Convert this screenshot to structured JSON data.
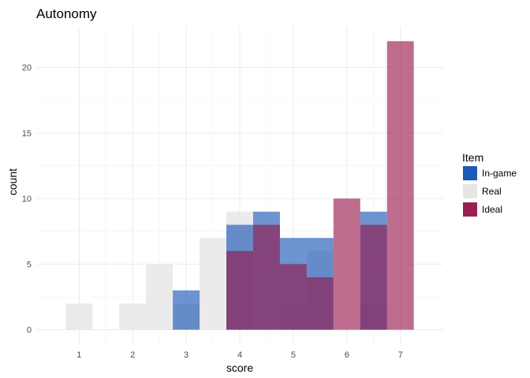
{
  "chart_data": {
    "type": "bar",
    "title": "Autonomy",
    "xlabel": "score",
    "ylabel": "count",
    "xlim": [
      0.2,
      7.8
    ],
    "ylim": [
      -1.1,
      23.1
    ],
    "x_ticks": [
      1,
      2,
      3,
      4,
      5,
      6,
      7
    ],
    "y_ticks": [
      0,
      5,
      10,
      15,
      20
    ],
    "grid": true,
    "legend_title": "Item",
    "legend_position": "right",
    "bin_centers": [
      1.0,
      1.5,
      2.0,
      2.5,
      3.0,
      3.5,
      4.0,
      4.5,
      5.0,
      5.5,
      6.0,
      6.5,
      7.0
    ],
    "bin_width": 0.5,
    "series": [
      {
        "name": "Real",
        "color": "#e6e6e6",
        "opacity": 0.78,
        "values": [
          2,
          0,
          2,
          5,
          2,
          7,
          9,
          0,
          2,
          6,
          0,
          2,
          0
        ]
      },
      {
        "name": "In-game",
        "color": "#1450b4",
        "opacity": 0.62,
        "values": [
          0,
          0,
          0,
          0,
          3,
          0,
          8,
          9,
          7,
          7,
          0,
          9,
          0
        ]
      },
      {
        "name": "Ideal",
        "color": "#961448",
        "opacity": 0.62,
        "values": [
          0,
          0,
          0,
          0,
          0,
          0,
          6,
          8,
          5,
          4,
          10,
          8,
          22
        ]
      }
    ],
    "legend_order": [
      "In-game",
      "Real",
      "Ideal"
    ]
  }
}
